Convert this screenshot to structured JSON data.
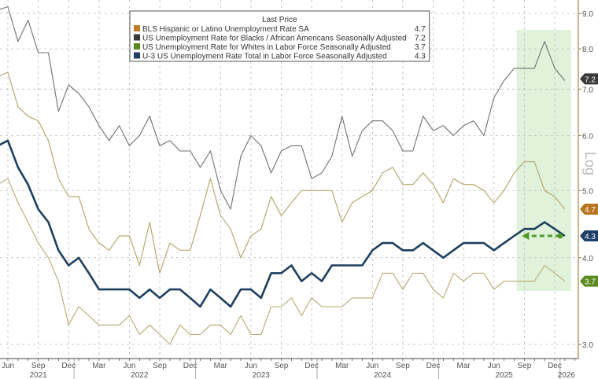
{
  "chart_data": {
    "type": "line",
    "legend": {
      "title": "Last Price",
      "placement": "top-center",
      "entries": [
        {
          "name": "BLS Hispanic or Latino Unemployment Rate SA",
          "last": "4.7",
          "swatch": "#c07a28"
        },
        {
          "name": "US Unemployment Rate for Blacks / African Americans Seasonally Adjusted",
          "last": "7.2",
          "swatch": "#3a3a3a"
        },
        {
          "name": "US Unemployment Rate for Whites in Labor Force Seasonally Adjusted",
          "last": "3.7",
          "swatch": "#5a8a1e"
        },
        {
          "name": "U-3 US Unemployment Rate Total in Labor Force Seasonally Adjusted",
          "last": "4.3",
          "swatch": "#1d3f66"
        }
      ]
    },
    "y_scale": "log",
    "y_axis_label": "Log",
    "ylim": [
      2.9,
      9.3
    ],
    "y_ticks": [
      "3.0",
      "4.0",
      "5.0",
      "6.0",
      "7.0",
      "8.0",
      "9.0"
    ],
    "x_range": [
      "2021-05",
      "2026-01"
    ],
    "x_ticks": [
      {
        "label": "Jun",
        "m": "2021-06"
      },
      {
        "label": "Sep",
        "m": "2021-09"
      },
      {
        "label": "Dec",
        "m": "2021-12"
      },
      {
        "label": "Mar",
        "m": "2022-03"
      },
      {
        "label": "Jun",
        "m": "2022-06"
      },
      {
        "label": "Sep",
        "m": "2022-09"
      },
      {
        "label": "Dec",
        "m": "2022-12"
      },
      {
        "label": "Mar",
        "m": "2023-03"
      },
      {
        "label": "Jun",
        "m": "2023-06"
      },
      {
        "label": "Sep",
        "m": "2023-09"
      },
      {
        "label": "Dec",
        "m": "2023-12"
      },
      {
        "label": "Mar",
        "m": "2024-03"
      },
      {
        "label": "Jun",
        "m": "2024-06"
      },
      {
        "label": "Sep",
        "m": "2024-09"
      },
      {
        "label": "Dec",
        "m": "2024-12"
      },
      {
        "label": "Mar",
        "m": "2025-03"
      },
      {
        "label": "Jun",
        "m": "2025-06"
      },
      {
        "label": "Sep",
        "m": "2025-09"
      },
      {
        "label": "Dec",
        "m": "2025-12"
      }
    ],
    "year_labels": [
      {
        "label": "2021",
        "m": "2021-09"
      },
      {
        "label": "2022",
        "m": "2022-07"
      },
      {
        "label": "2023",
        "m": "2023-07"
      },
      {
        "label": "2024",
        "m": "2024-07"
      },
      {
        "label": "2025",
        "m": "2025-07"
      },
      {
        "label": "2026",
        "m": "2026-01"
      }
    ],
    "grid": true,
    "highlight_region": {
      "from": "2025-08",
      "to": "2026-01",
      "color": "#d8efd0"
    },
    "annotation_arrow": {
      "from": "2026-01",
      "to": "2025-09",
      "value": 4.3,
      "color": "#4f9a2a",
      "style": "dashed"
    },
    "start_month": "2021-05",
    "series": [
      {
        "name": "BLS Hispanic or Latino Unemployment Rate SA",
        "color": "#b5aa72",
        "width": 1.2,
        "tag": "4.7",
        "tag_color": "#b8741e",
        "values": [
          7.3,
          7.4,
          6.6,
          6.4,
          6.3,
          5.9,
          5.2,
          4.9,
          4.9,
          4.4,
          4.2,
          4.1,
          4.3,
          4.3,
          3.9,
          4.5,
          3.8,
          4.2,
          4.1,
          4.1,
          4.6,
          5.2,
          4.6,
          4.4,
          4.0,
          4.3,
          4.4,
          4.9,
          4.6,
          4.8,
          5.0,
          5.0,
          5.0,
          5.0,
          4.5,
          4.8,
          4.9,
          5.0,
          5.3,
          5.4,
          5.1,
          5.1,
          5.3,
          5.1,
          4.8,
          5.2,
          5.1,
          5.1,
          5.0,
          4.8,
          5.0,
          5.3,
          5.5,
          5.5,
          5.0,
          4.9,
          4.7
        ]
      },
      {
        "name": "US Unemployment Rate for Blacks / African Americans Seasonally Adjusted",
        "color": "#707070",
        "width": 1.1,
        "tag": "7.2",
        "tag_color": "#3a3a3a",
        "values": [
          9.1,
          9.2,
          8.2,
          8.8,
          7.9,
          7.9,
          6.5,
          7.1,
          6.9,
          6.6,
          6.2,
          5.9,
          6.2,
          5.8,
          6.0,
          6.4,
          5.8,
          5.9,
          5.7,
          5.7,
          5.4,
          5.7,
          5.0,
          4.7,
          5.6,
          6.0,
          5.8,
          5.3,
          5.7,
          5.8,
          5.8,
          5.2,
          5.3,
          5.6,
          6.4,
          5.6,
          6.1,
          6.3,
          6.3,
          6.1,
          5.7,
          5.7,
          6.4,
          6.1,
          6.2,
          6.0,
          6.2,
          6.3,
          6.0,
          6.8,
          7.2,
          7.5,
          7.5,
          7.5,
          8.2,
          7.5,
          7.2
        ]
      },
      {
        "name": "US Unemployment Rate for Whites in Labor Force Seasonally Adjusted",
        "color": "#b5aa72",
        "width": 1.1,
        "tag": "3.7",
        "tag_color": "#5a8a1e",
        "values": [
          5.1,
          5.2,
          4.8,
          4.5,
          4.2,
          4.0,
          3.7,
          3.2,
          3.4,
          3.3,
          3.2,
          3.2,
          3.2,
          3.3,
          3.1,
          3.2,
          3.1,
          3.0,
          3.2,
          3.1,
          3.1,
          3.2,
          3.2,
          3.1,
          3.3,
          3.1,
          3.1,
          3.4,
          3.4,
          3.5,
          3.3,
          3.5,
          3.4,
          3.4,
          3.4,
          3.5,
          3.5,
          3.5,
          3.8,
          3.8,
          3.6,
          3.8,
          3.8,
          3.6,
          3.5,
          3.8,
          3.7,
          3.8,
          3.8,
          3.6,
          3.7,
          3.7,
          3.7,
          3.7,
          3.9,
          3.8,
          3.7
        ]
      },
      {
        "name": "U-3 US Unemployment Rate Total in Labor Force Seasonally Adjusted",
        "color": "#1d3f5e",
        "width": 2.6,
        "tag": "4.3",
        "tag_color": "#1d3f66",
        "values": [
          5.8,
          5.9,
          5.4,
          5.1,
          4.7,
          4.5,
          4.1,
          3.9,
          4.0,
          3.8,
          3.6,
          3.6,
          3.6,
          3.6,
          3.5,
          3.6,
          3.5,
          3.6,
          3.6,
          3.5,
          3.4,
          3.6,
          3.5,
          3.4,
          3.6,
          3.6,
          3.5,
          3.8,
          3.8,
          3.9,
          3.7,
          3.8,
          3.7,
          3.9,
          3.9,
          3.9,
          3.9,
          4.1,
          4.2,
          4.2,
          4.1,
          4.1,
          4.2,
          4.1,
          4.0,
          4.1,
          4.2,
          4.2,
          4.2,
          4.1,
          4.2,
          4.3,
          4.4,
          4.4,
          4.5,
          4.4,
          4.3
        ]
      }
    ]
  }
}
